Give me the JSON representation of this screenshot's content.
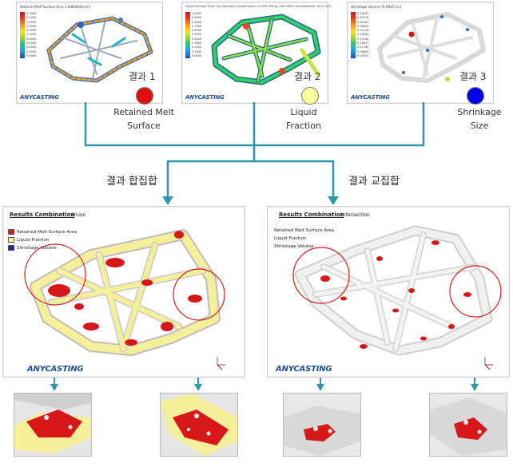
{
  "top_panels": [
    {
      "header": "Retained Melt Surface Area   1.0860000[cm²]",
      "legend_values": [
        "0.0000",
        "0.5000",
        "1.0000",
        "1.5000",
        "2.0000",
        "2.5000",
        "3.0000",
        "3.5000",
        "4.0000",
        "4.5000",
        "5.0000"
      ],
      "logo": "ANYCASTING",
      "result_label": "결과 1",
      "dot_color": "#e01010",
      "caption": [
        "Retained Melt",
        "Surface"
      ]
    },
    {
      "header": "Liquid Fraction   Time: 16.1309(sec)  LiquidFraction: 0.4990  Filling: 100.0000%  Solidification: 90.0112%",
      "legend_values": [
        "1.0000",
        "0.9000",
        "0.8000",
        "0.7000",
        "0.6000",
        "0.5000",
        "0.4000",
        "0.3000",
        "0.2000",
        "0.1000",
        "0.0000"
      ],
      "logo": "ANYCASTING",
      "result_label": "결과 2",
      "dot_color": "#ffff99",
      "caption": [
        "Liquid",
        "Fraction"
      ]
    },
    {
      "header": "Shrinkage Volume   76.4935 [cc]",
      "legend_values": [
        "0.50043",
        "0.45178",
        "0.41094",
        "0.36010",
        "0.31326",
        "0.26442",
        "0.21558",
        "0.16673",
        "0.11789",
        "0.06905",
        "0.02021"
      ],
      "logo": "ANYCASTING",
      "result_label": "결과 3",
      "dot_color": "#0000ee",
      "caption": [
        "Shrinkage",
        "Size"
      ]
    }
  ],
  "combinations": [
    {
      "heading": "결과 합집합",
      "panel_title": "Results Combination",
      "mode": "Union",
      "legend": [
        {
          "label": "Retained Melt Surface Area",
          "color": "#d81818"
        },
        {
          "label": "Liquid Fraction",
          "color": "#ffff99"
        },
        {
          "label": "Shrinkage Volume",
          "color": "#1a2aa8"
        }
      ],
      "logo": "ANYCASTING"
    },
    {
      "heading": "결과 교집합",
      "panel_title": "Results Combination",
      "mode": "Intersection",
      "legend": [
        {
          "label": "Retained Melt Surface Area"
        },
        {
          "label": "Liquid Fraction"
        },
        {
          "label": "Shrinkage Volume"
        }
      ],
      "logo": "ANYCASTING"
    }
  ],
  "colors": {
    "connector": "#2f96aa",
    "highlight_circle": "#d81818",
    "casting": "#e6e6e6",
    "retained_melt": "#d81818",
    "liquid_fraction": "#f5ef9a"
  }
}
